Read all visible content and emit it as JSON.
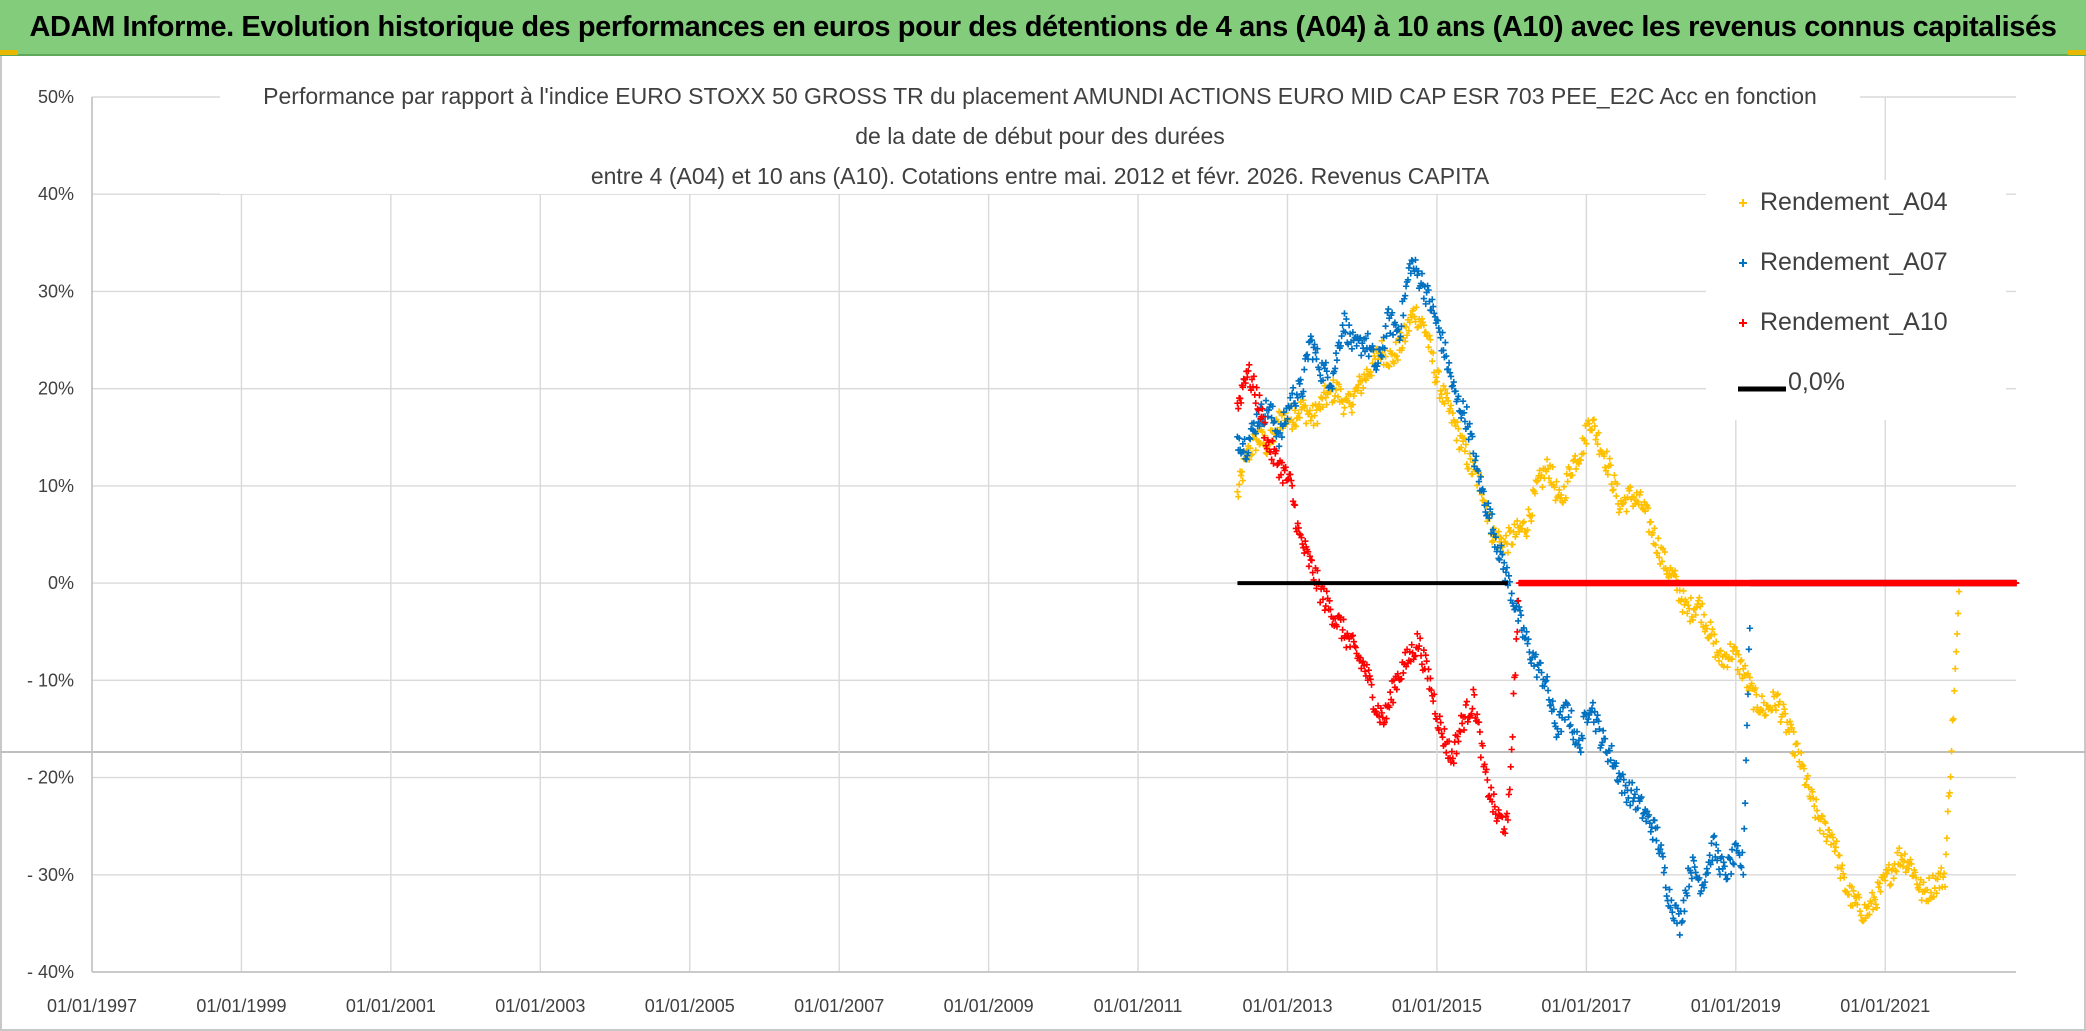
{
  "header": {
    "title": "ADAM Informe. Evolution historique des performances en euros pour des détentions de 4 ans (A04) à 10 ans (A10) avec les revenus connus capitalisés"
  },
  "colors": {
    "banner": "#82cc7c",
    "A04": "#ffc000",
    "A07": "#0070c0",
    "A10": "#ff0000",
    "zero": "#000000",
    "grid": "#d9d9d9"
  },
  "chart_data": {
    "type": "scatter",
    "title_lines": [
      "Performance par rapport à l'indice EURO STOXX 50 GROSS TR  du placement AMUNDI ACTIONS EURO MID CAP ESR 703 PEE_E2C Acc en fonction",
      "de la date de début pour des durées",
      "entre 4 (A04) et 10 ans (A10). Cotations entre mai. 2012 et févr. 2026. Revenus CAPITA"
    ],
    "x_ticks": [
      "01/01/1997",
      "01/01/1999",
      "01/01/2001",
      "01/01/2003",
      "01/01/2005",
      "01/01/2007",
      "01/01/2009",
      "01/01/2011",
      "01/01/2013",
      "01/01/2015",
      "01/01/2017",
      "01/01/2019",
      "01/01/2021"
    ],
    "y_ticks": [
      "50%",
      "40%",
      "30%",
      "20%",
      "10%",
      "0%",
      "- 10%",
      "- 20%",
      "- 30%",
      "- 40%"
    ],
    "y_tick_values": [
      50,
      40,
      30,
      20,
      10,
      0,
      -10,
      -20,
      -30,
      -40
    ],
    "xlim": [
      1997.0,
      2022.75
    ],
    "ylim": [
      -40,
      50
    ],
    "grid": true,
    "legend_position": "top-right",
    "series": [
      {
        "name": "Rendement_A04",
        "marker": "plus",
        "points": [
          [
            2012.33,
            9
          ],
          [
            2012.45,
            13
          ],
          [
            2012.6,
            15
          ],
          [
            2012.75,
            14
          ],
          [
            2012.9,
            17
          ],
          [
            2013.05,
            17
          ],
          [
            2013.2,
            18
          ],
          [
            2013.35,
            17
          ],
          [
            2013.5,
            19
          ],
          [
            2013.65,
            20
          ],
          [
            2013.8,
            18
          ],
          [
            2013.95,
            20
          ],
          [
            2014.1,
            22
          ],
          [
            2014.25,
            24
          ],
          [
            2014.4,
            23
          ],
          [
            2014.55,
            25
          ],
          [
            2014.7,
            28
          ],
          [
            2014.85,
            26
          ],
          [
            2015.0,
            21
          ],
          [
            2015.15,
            18
          ],
          [
            2015.3,
            15
          ],
          [
            2015.45,
            12
          ],
          [
            2015.6,
            10
          ],
          [
            2015.75,
            5
          ],
          [
            2015.9,
            4
          ],
          [
            2016.05,
            5
          ],
          [
            2016.2,
            6
          ],
          [
            2016.35,
            10
          ],
          [
            2016.5,
            12
          ],
          [
            2016.65,
            8
          ],
          [
            2016.8,
            12
          ],
          [
            2016.95,
            14
          ],
          [
            2017.05,
            17
          ],
          [
            2017.15,
            15
          ],
          [
            2017.3,
            12
          ],
          [
            2017.45,
            8
          ],
          [
            2017.6,
            9
          ],
          [
            2017.75,
            8
          ],
          [
            2017.9,
            5
          ],
          [
            2018.05,
            2
          ],
          [
            2018.2,
            0
          ],
          [
            2018.35,
            -3
          ],
          [
            2018.5,
            -2
          ],
          [
            2018.65,
            -5
          ],
          [
            2018.8,
            -8
          ],
          [
            2018.95,
            -7
          ],
          [
            2019.1,
            -9
          ],
          [
            2019.25,
            -12
          ],
          [
            2019.4,
            -13
          ],
          [
            2019.55,
            -12
          ],
          [
            2019.7,
            -15
          ],
          [
            2019.85,
            -18
          ],
          [
            2020.0,
            -22
          ],
          [
            2020.15,
            -25
          ],
          [
            2020.3,
            -26
          ],
          [
            2020.45,
            -31
          ],
          [
            2020.6,
            -33
          ],
          [
            2020.75,
            -34
          ],
          [
            2020.9,
            -32
          ],
          [
            2021.05,
            -30
          ],
          [
            2021.2,
            -28
          ],
          [
            2021.35,
            -29
          ],
          [
            2021.5,
            -32
          ],
          [
            2021.65,
            -31
          ],
          [
            2021.8,
            -30
          ],
          [
            2022.0,
            0
          ],
          [
            2022.2,
            0
          ],
          [
            2022.4,
            0
          ],
          [
            2022.6,
            0
          ],
          [
            2022.75,
            0
          ]
        ]
      },
      {
        "name": "Rendement_A07",
        "marker": "plus",
        "points": [
          [
            2012.33,
            15
          ],
          [
            2012.45,
            14
          ],
          [
            2012.6,
            17
          ],
          [
            2012.75,
            18
          ],
          [
            2012.9,
            15
          ],
          [
            2013.05,
            19
          ],
          [
            2013.2,
            20
          ],
          [
            2013.3,
            25
          ],
          [
            2013.45,
            22
          ],
          [
            2013.6,
            21
          ],
          [
            2013.75,
            27
          ],
          [
            2013.9,
            24
          ],
          [
            2014.05,
            25
          ],
          [
            2014.2,
            22
          ],
          [
            2014.35,
            27
          ],
          [
            2014.5,
            26
          ],
          [
            2014.65,
            33
          ],
          [
            2014.8,
            31
          ],
          [
            2014.95,
            28
          ],
          [
            2015.1,
            24
          ],
          [
            2015.25,
            19
          ],
          [
            2015.4,
            17
          ],
          [
            2015.55,
            11
          ],
          [
            2015.7,
            7
          ],
          [
            2015.85,
            3
          ],
          [
            2016.0,
            -1
          ],
          [
            2016.15,
            -5
          ],
          [
            2016.3,
            -8
          ],
          [
            2016.45,
            -10
          ],
          [
            2016.6,
            -15
          ],
          [
            2016.75,
            -13
          ],
          [
            2016.9,
            -17
          ],
          [
            2017.05,
            -12
          ],
          [
            2017.2,
            -16
          ],
          [
            2017.35,
            -18
          ],
          [
            2017.5,
            -21
          ],
          [
            2017.65,
            -22
          ],
          [
            2017.8,
            -24
          ],
          [
            2017.95,
            -26
          ],
          [
            2018.1,
            -32
          ],
          [
            2018.25,
            -35
          ],
          [
            2018.4,
            -29
          ],
          [
            2018.55,
            -31
          ],
          [
            2018.7,
            -27
          ],
          [
            2018.85,
            -30
          ],
          [
            2019.0,
            -28
          ],
          [
            2019.1,
            -29
          ],
          [
            2019.2,
            0
          ],
          [
            2019.6,
            0
          ],
          [
            2020.2,
            0
          ],
          [
            2020.8,
            0
          ],
          [
            2021.4,
            0
          ],
          [
            2022.0,
            0
          ],
          [
            2022.75,
            0
          ]
        ]
      },
      {
        "name": "Rendement_A10",
        "marker": "plus",
        "points": [
          [
            2012.33,
            18
          ],
          [
            2012.45,
            22
          ],
          [
            2012.6,
            19
          ],
          [
            2012.75,
            14
          ],
          [
            2012.9,
            12
          ],
          [
            2013.05,
            10
          ],
          [
            2013.15,
            5
          ],
          [
            2013.3,
            2
          ],
          [
            2013.45,
            -1
          ],
          [
            2013.6,
            -3
          ],
          [
            2013.75,
            -5
          ],
          [
            2013.9,
            -7
          ],
          [
            2014.05,
            -9
          ],
          [
            2014.2,
            -13
          ],
          [
            2014.3,
            -14
          ],
          [
            2014.45,
            -10
          ],
          [
            2014.6,
            -8
          ],
          [
            2014.75,
            -6
          ],
          [
            2014.9,
            -10
          ],
          [
            2015.05,
            -15
          ],
          [
            2015.2,
            -18
          ],
          [
            2015.35,
            -14
          ],
          [
            2015.5,
            -12
          ],
          [
            2015.65,
            -20
          ],
          [
            2015.8,
            -24
          ],
          [
            2015.95,
            -25
          ],
          [
            2016.1,
            0
          ],
          [
            2016.5,
            0
          ],
          [
            2017.0,
            0
          ],
          [
            2017.5,
            0
          ],
          [
            2018.0,
            0
          ],
          [
            2018.5,
            0
          ],
          [
            2019.0,
            0
          ],
          [
            2019.5,
            0
          ],
          [
            2020.0,
            0
          ],
          [
            2020.5,
            0
          ],
          [
            2021.0,
            0
          ],
          [
            2021.5,
            0
          ],
          [
            2022.0,
            0
          ],
          [
            2022.5,
            0
          ],
          [
            2022.75,
            0
          ]
        ]
      },
      {
        "name": "0,0%",
        "marker": "line",
        "points": [
          [
            2012.33,
            0
          ],
          [
            2015.95,
            0
          ]
        ]
      }
    ]
  }
}
